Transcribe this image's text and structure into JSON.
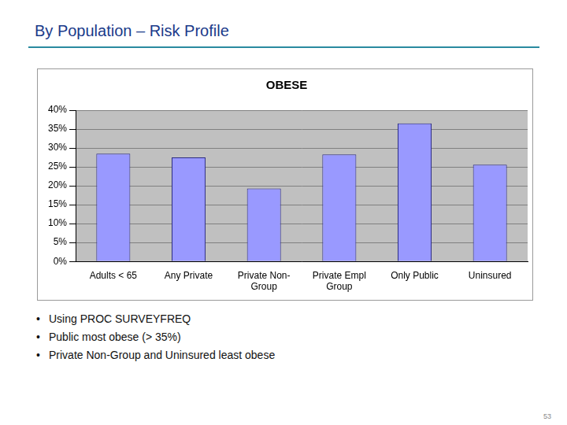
{
  "slide": {
    "title": "By Population – Risk Profile",
    "bullets": [
      "Using PROC SURVEYFREQ",
      "Public most obese (> 35%)",
      "Private Non-Group and Uninsured least obese"
    ],
    "page_number": "53"
  },
  "chart_data": {
    "type": "bar",
    "title": "OBESE",
    "categories": [
      "Adults < 65",
      "Any Private",
      "Private Non-Group",
      "Private Empl Group",
      "Only Public",
      "Uninsured"
    ],
    "values": [
      28.5,
      27.5,
      19.3,
      28.3,
      36.5,
      25.6
    ],
    "color": "#9999ff",
    "ylim": [
      0,
      40
    ],
    "yticks": [
      {
        "value": 0,
        "label": "0%"
      },
      {
        "value": 5,
        "label": "5%"
      },
      {
        "value": 10,
        "label": "10%"
      },
      {
        "value": 15,
        "label": "15%"
      },
      {
        "value": 20,
        "label": "20%"
      },
      {
        "value": 25,
        "label": "25%"
      },
      {
        "value": 30,
        "label": "30%"
      },
      {
        "value": 35,
        "label": "35%"
      },
      {
        "value": 40,
        "label": "40%"
      }
    ],
    "grid": true
  }
}
